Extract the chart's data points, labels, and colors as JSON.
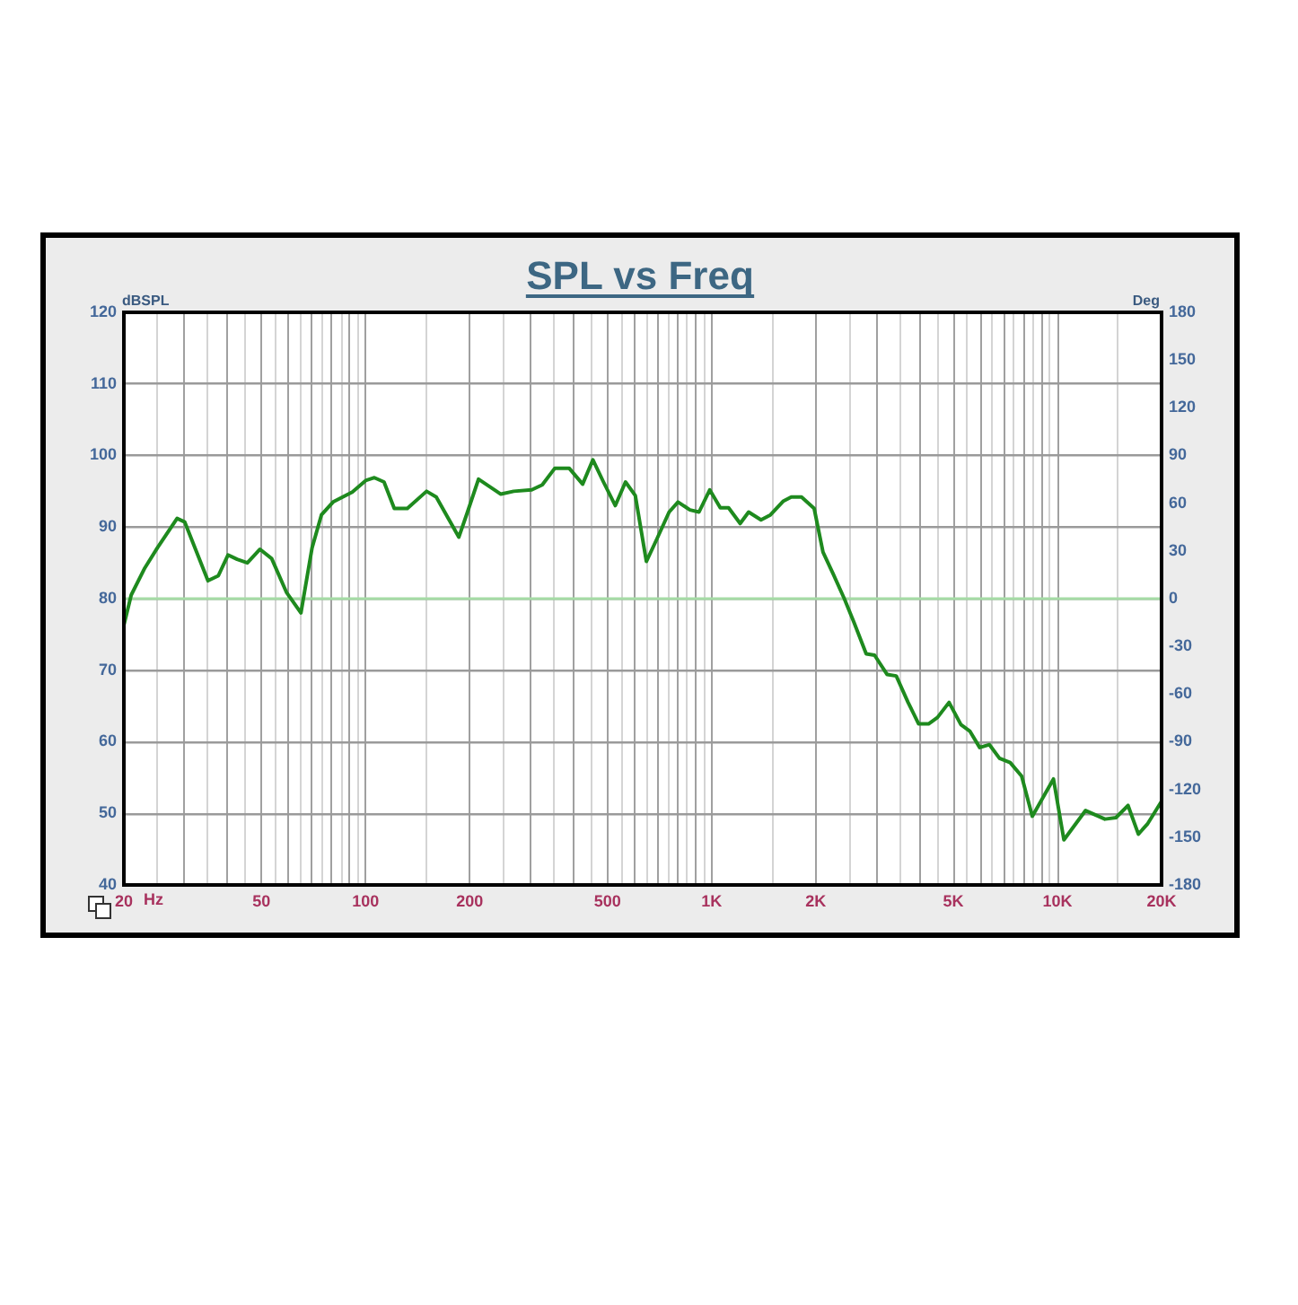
{
  "chart_data": {
    "type": "line",
    "title": "SPL vs Freq",
    "xlabel": "Hz",
    "ylabel": "dBSPL",
    "y2label": "Deg",
    "log": "x",
    "grid": true,
    "marker": "none",
    "x": [
      20,
      21,
      23,
      25,
      28.5,
      30,
      35,
      37.5,
      40,
      42.5,
      45.5,
      49.5,
      53.5,
      59,
      65,
      70,
      74.5,
      80.5,
      91.5,
      100,
      106,
      113,
      121,
      132,
      150,
      160,
      186,
      197,
      212,
      246,
      268,
      302,
      324,
      352,
      388,
      424,
      454,
      487,
      527,
      564,
      602,
      648,
      696,
      754,
      800,
      866,
      920,
      988,
      1060,
      1120,
      1210,
      1280,
      1390,
      1480,
      1610,
      1700,
      1820,
      1980,
      2100,
      2250,
      2420,
      2580,
      2800,
      2960,
      3220,
      3420,
      3700,
      3970,
      4240,
      4500,
      4860,
      5260,
      5580,
      5960,
      6360,
      6800,
      7300,
      7880,
      8460,
      9740,
      10440,
      12060,
      13720,
      14760,
      16000,
      17140,
      18200,
      20000
    ],
    "series": [
      {
        "color": "#1e8a1e",
        "values": [
          76.3,
          80.5,
          84.3,
          87.1,
          91.2,
          90.7,
          82.5,
          83.2,
          86.1,
          85.5,
          85.0,
          86.9,
          85.6,
          80.9,
          78.0,
          87.1,
          91.7,
          93.5,
          94.9,
          96.5,
          96.9,
          96.3,
          92.6,
          92.6,
          95.0,
          94.2,
          88.6,
          92.1,
          96.7,
          94.6,
          95.0,
          95.2,
          95.9,
          98.2,
          98.2,
          96.0,
          99.4,
          96.3,
          93.0,
          96.3,
          94.4,
          85.2,
          88.4,
          92.1,
          93.5,
          92.4,
          92.1,
          95.2,
          92.7,
          92.7,
          90.5,
          92.1,
          91.0,
          91.7,
          93.6,
          94.2,
          94.2,
          92.6,
          86.5,
          83.4,
          80.0,
          76.7,
          72.3,
          72.1,
          69.4,
          69.2,
          65.5,
          62.5,
          62.5,
          63.4,
          65.5,
          62.4,
          61.5,
          59.2,
          59.6,
          57.7,
          57.1,
          55.2,
          49.6,
          54.8,
          46.3,
          50.4,
          49.2,
          49.4,
          51.1,
          47.1,
          48.5,
          51.7
        ]
      }
    ],
    "xlim": [
      20,
      20000
    ],
    "xticks": [
      20,
      {
        "value": 25,
        "label": null
      },
      {
        "value": 30,
        "label": null
      },
      {
        "value": 35,
        "label": null
      },
      {
        "value": 40,
        "label": null
      },
      {
        "value": 45,
        "label": null
      },
      50,
      {
        "value": 55,
        "label": null
      },
      {
        "value": 60,
        "label": null
      },
      {
        "value": 65,
        "label": null
      },
      {
        "value": 70,
        "label": null
      },
      {
        "value": 75,
        "label": null
      },
      {
        "value": 80,
        "label": null
      },
      {
        "value": 85,
        "label": null
      },
      {
        "value": 90,
        "label": null
      },
      {
        "value": 95,
        "label": null
      },
      100,
      {
        "value": 150,
        "label": null
      },
      200,
      {
        "value": 250,
        "label": null
      },
      {
        "value": 300,
        "label": null
      },
      {
        "value": 350,
        "label": null
      },
      {
        "value": 400,
        "label": null
      },
      {
        "value": 450,
        "label": null
      },
      500,
      {
        "value": 550,
        "label": null
      },
      {
        "value": 600,
        "label": null
      },
      {
        "value": 650,
        "label": null
      },
      {
        "value": 700,
        "label": null
      },
      {
        "value": 750,
        "label": null
      },
      {
        "value": 800,
        "label": null
      },
      {
        "value": 850,
        "label": null
      },
      {
        "value": 900,
        "label": null
      },
      {
        "value": 950,
        "label": null
      },
      {
        "value": 1000,
        "label": "1K"
      },
      {
        "value": 1500,
        "label": null
      },
      {
        "value": 2000,
        "label": "2K"
      },
      {
        "value": 2500,
        "label": null
      },
      {
        "value": 3000,
        "label": null
      },
      {
        "value": 3500,
        "label": null
      },
      {
        "value": 4000,
        "label": null
      },
      {
        "value": 4500,
        "label": null
      },
      {
        "value": 5000,
        "label": "5K"
      },
      {
        "value": 5500,
        "label": null
      },
      {
        "value": 6000,
        "label": null
      },
      {
        "value": 6500,
        "label": null
      },
      {
        "value": 7000,
        "label": null
      },
      {
        "value": 7500,
        "label": null
      },
      {
        "value": 8000,
        "label": null
      },
      {
        "value": 8500,
        "label": null
      },
      {
        "value": 9000,
        "label": null
      },
      {
        "value": 9500,
        "label": null
      },
      {
        "value": 10000,
        "label": "10K"
      },
      {
        "value": 15000,
        "label": null
      },
      {
        "value": 20000,
        "label": "20K"
      }
    ],
    "ylim": [
      40,
      120
    ],
    "yticks": [
      40,
      50,
      60,
      70,
      80,
      90,
      100,
      110,
      120
    ],
    "y2lim": [
      -180,
      180
    ],
    "y2ticks": [
      -180,
      -150,
      -120,
      -90,
      -60,
      -30,
      0,
      30,
      60,
      90,
      120,
      150,
      180
    ],
    "ref_lines": [
      {
        "axis": "y2",
        "value": 0,
        "color": "#a6dca6"
      }
    ]
  }
}
